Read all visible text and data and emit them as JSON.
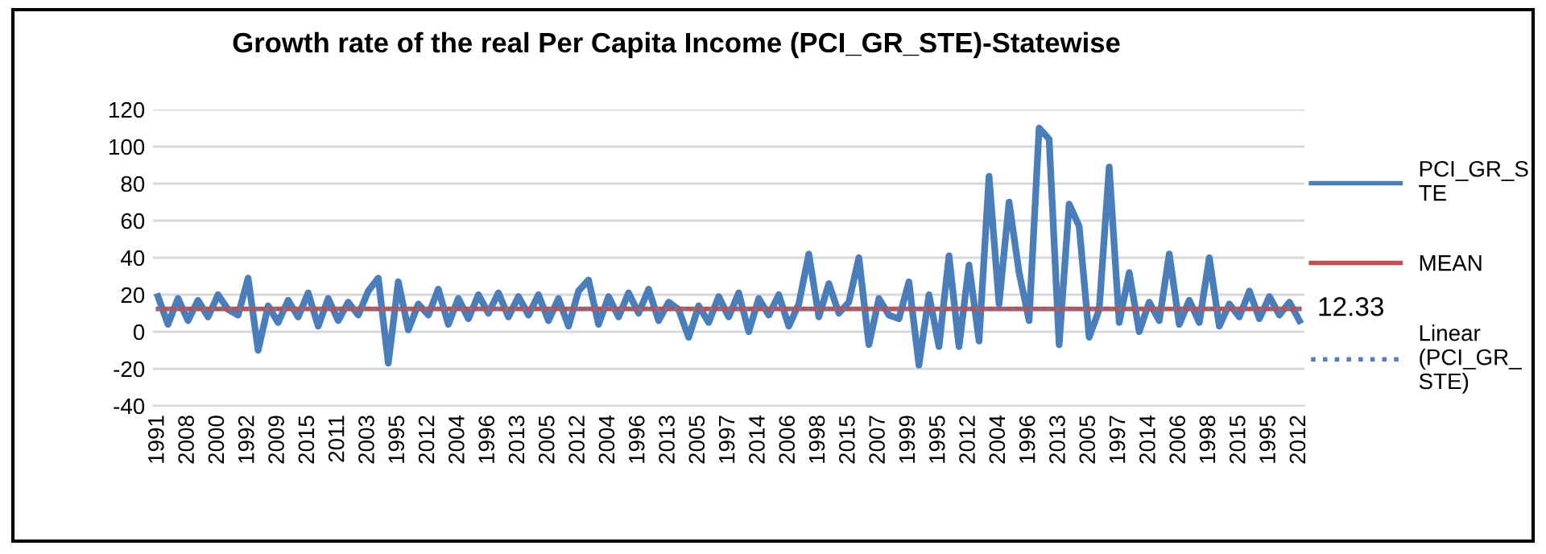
{
  "chart_data": {
    "type": "line",
    "title": "Growth rate of the real Per Capita Income (PCI_GR_STE)-Statewise",
    "categories": [
      "1991",
      null,
      null,
      "2008",
      null,
      null,
      "2000",
      null,
      null,
      "1992",
      null,
      null,
      "2009",
      null,
      null,
      "2015",
      null,
      null,
      "2011",
      null,
      null,
      "2003",
      null,
      null,
      "1995",
      null,
      null,
      "2012",
      null,
      null,
      "2004",
      null,
      null,
      "1996",
      null,
      null,
      "2013",
      null,
      null,
      "2005",
      null,
      null,
      "2012",
      null,
      null,
      "2004",
      null,
      null,
      "1996",
      null,
      null,
      "2013",
      null,
      null,
      "2005",
      null,
      null,
      "1997",
      null,
      null,
      "2014",
      null,
      null,
      "2006",
      null,
      null,
      "1998",
      null,
      null,
      "2015",
      null,
      null,
      "2007",
      null,
      null,
      "1999",
      null,
      null,
      "1995",
      null,
      null,
      "2012",
      null,
      null,
      "2004",
      null,
      null,
      "1996",
      null,
      null,
      "2013",
      null,
      null,
      "2005",
      null,
      null,
      "1997",
      null,
      null,
      "2014",
      null,
      null,
      "2006",
      null,
      null,
      "1998",
      null,
      null,
      "2015",
      null,
      null,
      "1995",
      null,
      null,
      "2012"
    ],
    "series": [
      {
        "name": "PCI_GR_STE",
        "color": "#4a7ebb",
        "line_style": "solid",
        "values": [
          19,
          4,
          18,
          6,
          17,
          8,
          20,
          12,
          9,
          29,
          -10,
          14,
          5,
          17,
          8,
          21,
          3,
          18,
          6,
          16,
          9,
          22,
          29,
          -17,
          27,
          1,
          15,
          9,
          23,
          4,
          18,
          7,
          20,
          10,
          21,
          8,
          19,
          9,
          20,
          6,
          18,
          3,
          22,
          28,
          4,
          19,
          8,
          21,
          10,
          23,
          6,
          16,
          12,
          -3,
          14,
          5,
          19,
          8,
          21,
          0,
          18,
          9,
          20,
          3,
          15,
          42,
          8,
          26,
          10,
          16,
          40,
          -7,
          18,
          9,
          7,
          27,
          -18,
          20,
          -8,
          41,
          -8,
          36,
          -5,
          84,
          15,
          70,
          32,
          6,
          110,
          104,
          -7,
          69,
          57,
          -3,
          12,
          89,
          5,
          32,
          0,
          16,
          6,
          42,
          4,
          17,
          5,
          40,
          3,
          15,
          8,
          22,
          7,
          19,
          9,
          16,
          6
        ]
      },
      {
        "name": "MEAN",
        "color": "#c0504d",
        "line_style": "solid",
        "values": [
          12.33,
          12.33,
          12.33,
          12.33,
          12.33,
          12.33,
          12.33,
          12.33,
          12.33,
          12.33,
          12.33,
          12.33,
          12.33,
          12.33,
          12.33,
          12.33,
          12.33,
          12.33,
          12.33,
          12.33,
          12.33,
          12.33,
          12.33,
          12.33,
          12.33,
          12.33,
          12.33,
          12.33,
          12.33,
          12.33,
          12.33,
          12.33,
          12.33,
          12.33,
          12.33,
          12.33,
          12.33,
          12.33,
          12.33,
          12.33,
          12.33,
          12.33,
          12.33,
          12.33,
          12.33,
          12.33,
          12.33,
          12.33,
          12.33,
          12.33,
          12.33,
          12.33,
          12.33,
          12.33,
          12.33,
          12.33,
          12.33,
          12.33,
          12.33,
          12.33,
          12.33,
          12.33,
          12.33,
          12.33,
          12.33,
          12.33,
          12.33,
          12.33,
          12.33,
          12.33,
          12.33,
          12.33,
          12.33,
          12.33,
          12.33,
          12.33,
          12.33,
          12.33,
          12.33,
          12.33,
          12.33,
          12.33,
          12.33,
          12.33,
          12.33,
          12.33,
          12.33,
          12.33,
          12.33,
          12.33,
          12.33,
          12.33,
          12.33,
          12.33,
          12.33,
          12.33,
          12.33,
          12.33,
          12.33,
          12.33,
          12.33,
          12.33,
          12.33,
          12.33,
          12.33,
          12.33,
          12.33,
          12.33,
          12.33,
          12.33,
          12.33,
          12.33,
          12.33,
          12.33,
          12.33
        ],
        "value_labels": [
          null,
          null,
          null,
          null,
          null,
          null,
          null,
          null,
          null,
          null,
          null,
          null,
          null,
          null,
          null,
          null,
          null,
          null,
          null,
          null,
          null,
          null,
          null,
          null,
          null,
          null,
          null,
          null,
          null,
          null,
          null,
          null,
          null,
          null,
          null,
          null,
          null,
          null,
          null,
          null,
          null,
          null,
          null,
          null,
          null,
          null,
          null,
          null,
          null,
          null,
          null,
          null,
          null,
          null,
          null,
          null,
          null,
          null,
          null,
          null,
          null,
          null,
          null,
          null,
          null,
          null,
          null,
          null,
          null,
          null,
          null,
          null,
          null,
          null,
          null,
          null,
          null,
          null,
          null,
          null,
          null,
          null,
          null,
          null,
          null,
          null,
          null,
          null,
          null,
          null,
          null,
          null,
          null,
          null,
          null,
          null,
          null,
          null,
          null,
          null,
          null,
          null,
          null,
          null,
          null,
          null,
          null,
          null,
          null,
          null,
          null,
          null,
          null,
          null,
          "12.33"
        ]
      },
      {
        "name": "Linear (PCI_GR_STE)",
        "color": "#4f81bd",
        "line_style": "dotted",
        "values": [
          12.3,
          12.3,
          12.3,
          12.3,
          12.3,
          12.3,
          12.3,
          12.3,
          12.3,
          12.3,
          12.3,
          12.3,
          12.3,
          12.3,
          12.3,
          12.3,
          12.3,
          12.3,
          12.3,
          12.3,
          12.3,
          12.3,
          12.3,
          12.3,
          12.3,
          12.3,
          12.3,
          12.3,
          12.3,
          12.3,
          12.3,
          12.3,
          12.3,
          12.3,
          12.3,
          12.3,
          12.3,
          12.3,
          12.3,
          12.3,
          12.3,
          12.3,
          12.3,
          12.3,
          12.3,
          12.3,
          12.3,
          12.3,
          12.3,
          12.3,
          12.3,
          12.3,
          12.3,
          12.3,
          12.3,
          12.3,
          12.3,
          12.3,
          12.3,
          12.3,
          12.3,
          12.3,
          12.3,
          12.3,
          12.3,
          12.3,
          12.3,
          12.3,
          12.3,
          12.3,
          12.3,
          12.3,
          12.3,
          12.3,
          12.3,
          12.3,
          12.3,
          12.3,
          12.3,
          12.3,
          12.3,
          12.3,
          12.3,
          12.3,
          12.3,
          12.3,
          12.3,
          12.3,
          12.3,
          12.3,
          12.3,
          12.3,
          12.3,
          12.3,
          12.3,
          12.3,
          12.3,
          12.3,
          12.3,
          12.3,
          12.3,
          12.3,
          12.3,
          12.3,
          12.3,
          12.3,
          12.3,
          12.3,
          12.3,
          12.3,
          12.3,
          12.3,
          12.3,
          12.3,
          12.3
        ]
      }
    ],
    "ylim": [
      -40,
      120
    ],
    "yticks": [
      -40,
      -20,
      0,
      20,
      40,
      60,
      80,
      100,
      120
    ],
    "grid": "y",
    "legend": "right",
    "marker": "none"
  }
}
